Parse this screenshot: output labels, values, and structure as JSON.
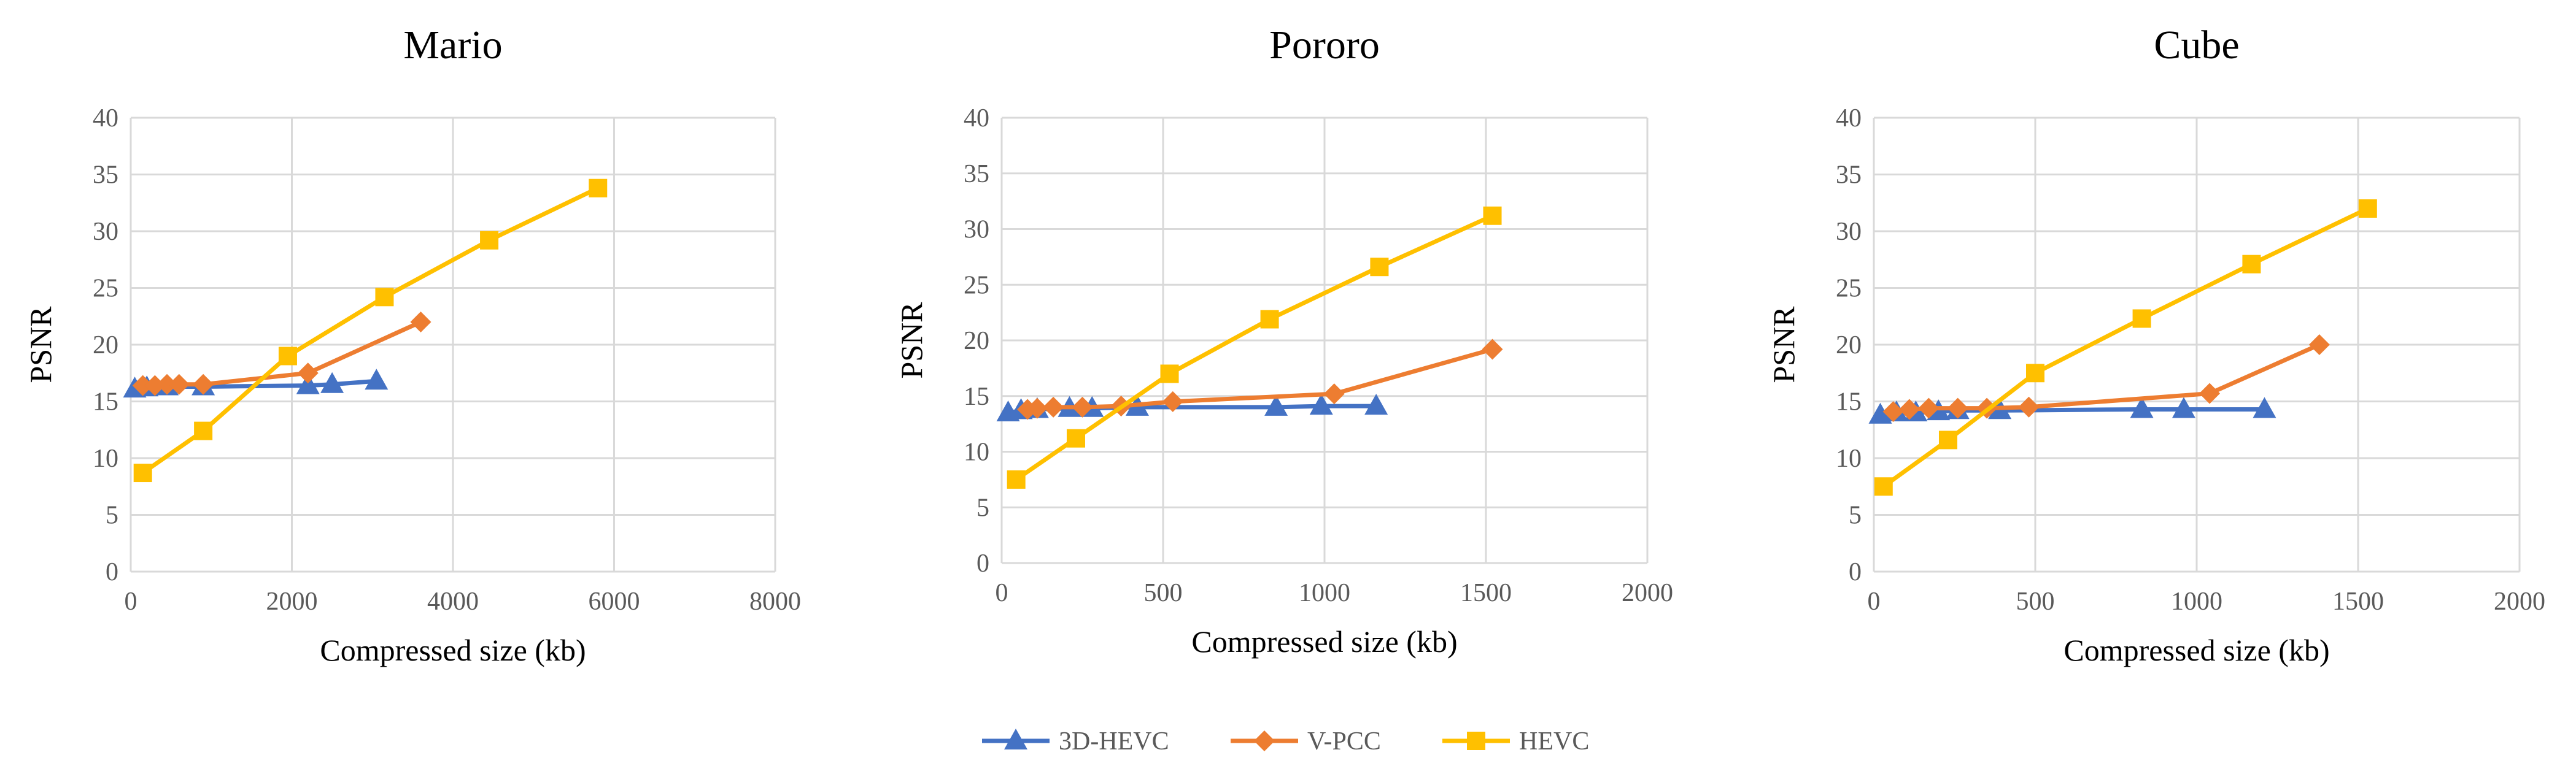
{
  "chart_data": [
    {
      "type": "line",
      "title": "Mario",
      "xlabel": "Compressed size (kb)",
      "ylabel": "PSNR",
      "xlim": [
        0,
        8000
      ],
      "ylim": [
        0,
        40
      ],
      "x_ticks": [
        "0",
        "2000",
        "4000",
        "6000",
        "8000"
      ],
      "y_ticks": [
        "0",
        "5",
        "10",
        "15",
        "20",
        "25",
        "30",
        "35",
        "40"
      ],
      "grid": true,
      "series": [
        {
          "name": "3D-HEVC",
          "x": [
            50,
            200,
            450,
            900,
            2200,
            2500,
            3050
          ],
          "y": [
            16.1,
            16.2,
            16.3,
            16.3,
            16.4,
            16.5,
            16.8
          ]
        },
        {
          "name": "V-PCC",
          "x": [
            150,
            300,
            450,
            600,
            900,
            2200,
            3600
          ],
          "y": [
            16.4,
            16.4,
            16.5,
            16.5,
            16.5,
            17.5,
            22.0
          ]
        },
        {
          "name": "HEVC",
          "x": [
            150,
            900,
            1950,
            3150,
            4450,
            5800
          ],
          "y": [
            8.7,
            12.4,
            19.0,
            24.2,
            29.2,
            33.8
          ]
        }
      ]
    },
    {
      "type": "line",
      "title": "Pororo",
      "xlabel": "Compressed size (kb)",
      "ylabel": "PSNR",
      "xlim": [
        0,
        2000
      ],
      "ylim": [
        0,
        40
      ],
      "x_ticks": [
        "0",
        "500",
        "1000",
        "1500",
        "2000"
      ],
      "y_ticks": [
        "0",
        "5",
        "10",
        "15",
        "20",
        "25",
        "30",
        "35",
        "40"
      ],
      "grid": true,
      "series": [
        {
          "name": "3D-HEVC",
          "x": [
            20,
            60,
            110,
            210,
            280,
            420,
            850,
            990,
            1160
          ],
          "y": [
            13.5,
            13.7,
            13.8,
            13.9,
            13.9,
            14.0,
            14.0,
            14.1,
            14.1
          ]
        },
        {
          "name": "V-PCC",
          "x": [
            80,
            110,
            160,
            250,
            370,
            530,
            1030,
            1520
          ],
          "y": [
            13.8,
            13.9,
            14.0,
            14.0,
            14.1,
            14.5,
            15.2,
            19.2
          ]
        },
        {
          "name": "HEVC",
          "x": [
            45,
            230,
            520,
            830,
            1170,
            1520
          ],
          "y": [
            7.5,
            11.2,
            17.0,
            21.9,
            26.6,
            31.2
          ]
        }
      ]
    },
    {
      "type": "line",
      "title": "Cube",
      "xlabel": "Compressed size (kb)",
      "ylabel": "PSNR",
      "xlim": [
        0,
        2000
      ],
      "ylim": [
        0,
        40
      ],
      "x_ticks": [
        "0",
        "500",
        "1000",
        "1500",
        "2000"
      ],
      "y_ticks": [
        "0",
        "5",
        "10",
        "15",
        "20",
        "25",
        "30",
        "35",
        "40"
      ],
      "grid": true,
      "series": [
        {
          "name": "3D-HEVC",
          "x": [
            20,
            70,
            130,
            200,
            260,
            390,
            830,
            960,
            1210
          ],
          "y": [
            13.8,
            14.0,
            14.0,
            14.1,
            14.2,
            14.2,
            14.3,
            14.3,
            14.3
          ]
        },
        {
          "name": "V-PCC",
          "x": [
            60,
            110,
            170,
            260,
            350,
            480,
            1040,
            1380
          ],
          "y": [
            14.1,
            14.3,
            14.4,
            14.4,
            14.4,
            14.5,
            15.7,
            20.0
          ]
        },
        {
          "name": "HEVC",
          "x": [
            30,
            230,
            500,
            830,
            1170,
            1530
          ],
          "y": [
            7.5,
            11.6,
            17.5,
            22.3,
            27.1,
            32.0
          ]
        }
      ]
    }
  ],
  "legend": [
    {
      "label": "3D-HEVC",
      "color": "#4472C4",
      "marker": "triangle"
    },
    {
      "label": "V-PCC",
      "color": "#ED7D31",
      "marker": "diamond"
    },
    {
      "label": "HEVC",
      "color": "#FFC000",
      "marker": "square"
    }
  ]
}
